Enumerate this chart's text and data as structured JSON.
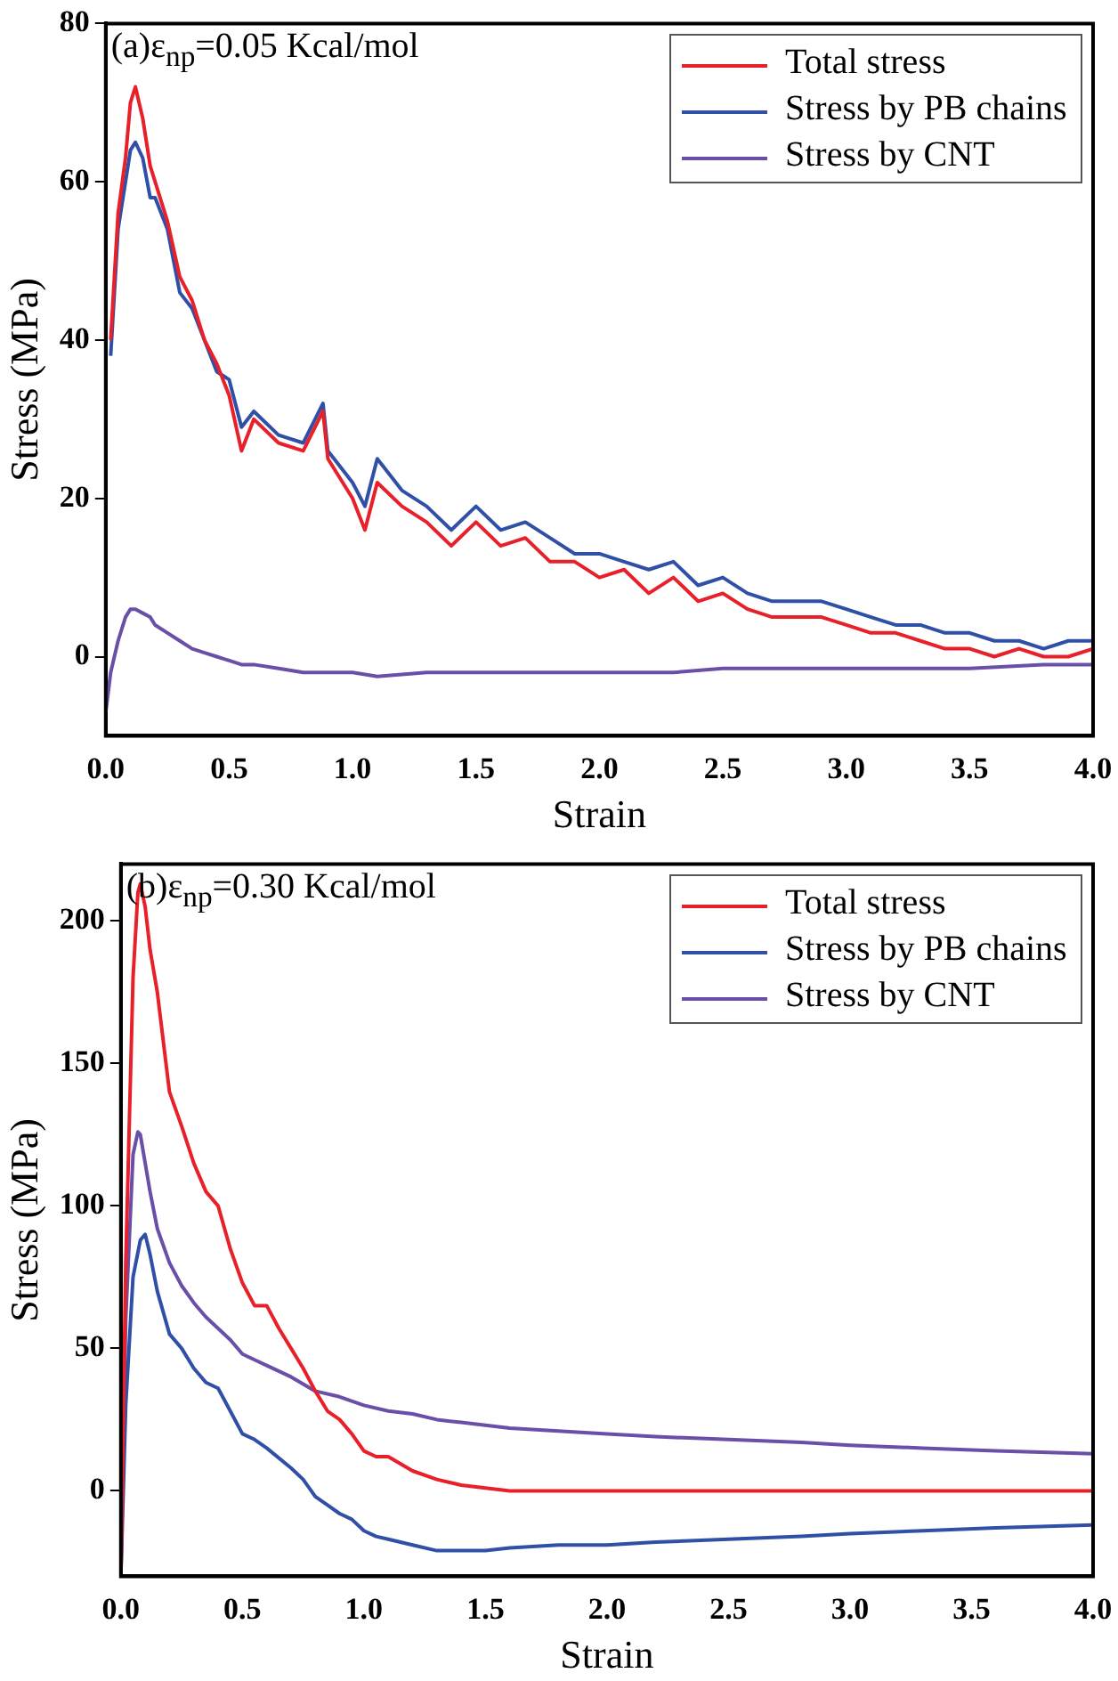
{
  "chart_data": [
    {
      "type": "line",
      "annotations": [
        "(a)ε$_{np}$=0.05 Kcal/mol"
      ],
      "xlabel": "Strain",
      "ylabel": "Stress (MPa)",
      "xlim": [
        0,
        4
      ],
      "ylim": [
        -10,
        80
      ],
      "xticks": [
        {
          "value": 0,
          "label": "0.0"
        },
        {
          "value": 0.5,
          "label": "0.5"
        },
        {
          "value": 1,
          "label": "1.0"
        },
        {
          "value": 1.5,
          "label": "1.5"
        },
        {
          "value": 2,
          "label": "2.0"
        },
        {
          "value": 2.5,
          "label": "2.5"
        },
        {
          "value": 3,
          "label": "3.0"
        },
        {
          "value": 3.5,
          "label": "3.5"
        },
        {
          "value": 4,
          "label": "4.0"
        }
      ],
      "yticks": [
        0,
        20,
        40,
        60,
        80
      ],
      "legend": "top right",
      "series": [
        {
          "name": "Total stress",
          "color": "#e8202a",
          "x": [
            0.02,
            0.05,
            0.08,
            0.1,
            0.12,
            0.15,
            0.18,
            0.2,
            0.25,
            0.3,
            0.35,
            0.4,
            0.45,
            0.5,
            0.55,
            0.6,
            0.7,
            0.8,
            0.88,
            0.9,
            1.0,
            1.05,
            1.1,
            1.2,
            1.3,
            1.4,
            1.5,
            1.6,
            1.7,
            1.8,
            1.9,
            2.0,
            2.1,
            2.2,
            2.3,
            2.4,
            2.5,
            2.6,
            2.7,
            2.8,
            2.9,
            3.0,
            3.1,
            3.2,
            3.3,
            3.4,
            3.5,
            3.6,
            3.7,
            3.8,
            3.9,
            4.0
          ],
          "values": [
            40,
            56,
            63,
            70,
            72,
            68,
            62,
            60,
            55,
            48,
            45,
            40,
            37,
            33,
            26,
            30,
            27,
            26,
            31,
            25,
            20,
            16,
            22,
            19,
            17,
            14,
            17,
            14,
            15,
            12,
            12,
            10,
            11,
            8,
            10,
            7,
            8,
            6,
            5,
            5,
            5,
            4,
            3,
            3,
            2,
            1,
            1,
            0,
            1,
            0,
            0,
            1
          ]
        },
        {
          "name": "Stress by PB chains",
          "color": "#3050a8",
          "x": [
            0.02,
            0.05,
            0.08,
            0.1,
            0.12,
            0.15,
            0.18,
            0.2,
            0.25,
            0.3,
            0.35,
            0.4,
            0.45,
            0.5,
            0.55,
            0.6,
            0.7,
            0.8,
            0.88,
            0.9,
            1.0,
            1.05,
            1.1,
            1.2,
            1.3,
            1.4,
            1.5,
            1.6,
            1.7,
            1.8,
            1.9,
            2.0,
            2.1,
            2.2,
            2.3,
            2.4,
            2.5,
            2.6,
            2.7,
            2.8,
            2.9,
            3.0,
            3.1,
            3.2,
            3.3,
            3.4,
            3.5,
            3.6,
            3.7,
            3.8,
            3.9,
            4.0
          ],
          "values": [
            38,
            54,
            60,
            64,
            65,
            63,
            58,
            58,
            54,
            46,
            44,
            40,
            36,
            35,
            29,
            31,
            28,
            27,
            32,
            26,
            22,
            19,
            25,
            21,
            19,
            16,
            19,
            16,
            17,
            15,
            13,
            13,
            12,
            11,
            12,
            9,
            10,
            8,
            7,
            7,
            7,
            6,
            5,
            4,
            4,
            3,
            3,
            2,
            2,
            1,
            2,
            2
          ]
        },
        {
          "name": "Stress by CNT",
          "color": "#6a4fa8",
          "x": [
            0,
            0.02,
            0.05,
            0.08,
            0.1,
            0.12,
            0.15,
            0.18,
            0.2,
            0.25,
            0.3,
            0.35,
            0.4,
            0.45,
            0.5,
            0.55,
            0.6,
            0.7,
            0.8,
            0.9,
            1.0,
            1.1,
            1.3,
            1.5,
            1.7,
            2.0,
            2.3,
            2.5,
            2.8,
            3.0,
            3.3,
            3.5,
            3.8,
            4.0
          ],
          "values": [
            -7,
            -2,
            2,
            5,
            6,
            6,
            5.5,
            5,
            4,
            3,
            2,
            1,
            0.5,
            0,
            -0.5,
            -1,
            -1,
            -1.5,
            -2,
            -2,
            -2,
            -2.5,
            -2,
            -2,
            -2,
            -2,
            -2,
            -1.5,
            -1.5,
            -1.5,
            -1.5,
            -1.5,
            -1,
            -1
          ]
        }
      ]
    },
    {
      "type": "line",
      "annotations": [
        "(b)ε$_{np}$=0.30 Kcal/mol"
      ],
      "xlabel": "Strain",
      "ylabel": "Stress (MPa)",
      "xlim": [
        0,
        4
      ],
      "ylim": [
        -30,
        220
      ],
      "xticks": [
        {
          "value": 0,
          "label": "0.0"
        },
        {
          "value": 0.5,
          "label": "0.5"
        },
        {
          "value": 1,
          "label": "1.0"
        },
        {
          "value": 1.5,
          "label": "1.5"
        },
        {
          "value": 2,
          "label": "2.0"
        },
        {
          "value": 2.5,
          "label": "2.5"
        },
        {
          "value": 3,
          "label": "3.0"
        },
        {
          "value": 3.5,
          "label": "3.5"
        },
        {
          "value": 4,
          "label": "4.0"
        }
      ],
      "yticks": [
        0,
        50,
        100,
        150,
        200
      ],
      "legend": "top right",
      "series": [
        {
          "name": "Total stress",
          "color": "#e8202a",
          "x": [
            0,
            0.02,
            0.05,
            0.07,
            0.08,
            0.1,
            0.12,
            0.15,
            0.2,
            0.25,
            0.3,
            0.35,
            0.4,
            0.45,
            0.5,
            0.55,
            0.6,
            0.65,
            0.7,
            0.75,
            0.8,
            0.85,
            0.9,
            0.95,
            1.0,
            1.05,
            1.1,
            1.2,
            1.3,
            1.4,
            1.5,
            1.6,
            2.0,
            2.5,
            3.0,
            3.5,
            4.0
          ],
          "values": [
            -30,
            80,
            180,
            210,
            213,
            205,
            190,
            175,
            140,
            128,
            115,
            105,
            100,
            85,
            73,
            65,
            65,
            57,
            50,
            43,
            35,
            28,
            25,
            20,
            14,
            12,
            12,
            7,
            4,
            2,
            1,
            0,
            0,
            0,
            0,
            0,
            0
          ]
        },
        {
          "name": "Stress by PB chains",
          "color": "#3050a8",
          "x": [
            0,
            0.02,
            0.05,
            0.08,
            0.1,
            0.12,
            0.15,
            0.2,
            0.25,
            0.3,
            0.35,
            0.4,
            0.45,
            0.5,
            0.55,
            0.6,
            0.7,
            0.75,
            0.8,
            0.85,
            0.9,
            0.95,
            1.0,
            1.05,
            1.1,
            1.2,
            1.3,
            1.4,
            1.5,
            1.6,
            1.8,
            2.0,
            2.2,
            2.5,
            2.8,
            3.0,
            3.3,
            3.6,
            4.0
          ],
          "values": [
            -30,
            30,
            75,
            88,
            90,
            83,
            70,
            55,
            50,
            43,
            38,
            36,
            28,
            20,
            18,
            15,
            8,
            4,
            -2,
            -5,
            -8,
            -10,
            -14,
            -16,
            -17,
            -19,
            -21,
            -21,
            -21,
            -20,
            -19,
            -19,
            -18,
            -17,
            -16,
            -15,
            -14,
            -13,
            -12
          ]
        },
        {
          "name": "Stress by CNT",
          "color": "#6a4fa8",
          "x": [
            0,
            0.02,
            0.05,
            0.07,
            0.08,
            0.1,
            0.12,
            0.15,
            0.2,
            0.25,
            0.3,
            0.35,
            0.4,
            0.45,
            0.5,
            0.55,
            0.6,
            0.7,
            0.8,
            0.9,
            1.0,
            1.1,
            1.2,
            1.3,
            1.4,
            1.5,
            1.6,
            1.8,
            2.0,
            2.2,
            2.5,
            2.8,
            3.0,
            3.3,
            3.6,
            4.0
          ],
          "values": [
            -30,
            60,
            118,
            126,
            125,
            115,
            105,
            92,
            80,
            72,
            66,
            61,
            57,
            53,
            48,
            46,
            44,
            40,
            35,
            33,
            30,
            28,
            27,
            25,
            24,
            23,
            22,
            21,
            20,
            19,
            18,
            17,
            16,
            15,
            14,
            13
          ]
        }
      ]
    }
  ]
}
